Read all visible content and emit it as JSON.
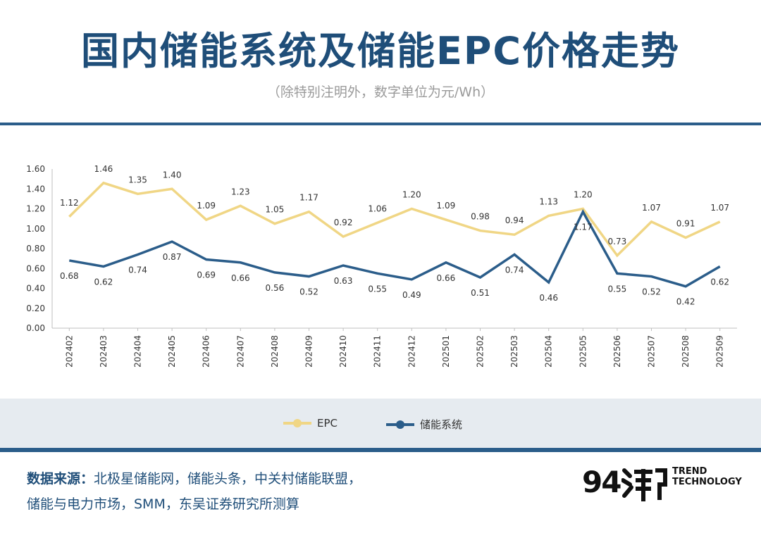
{
  "header": {
    "title": "国内储能系统及储能EPC价格走势",
    "subtitle": "（除特别注明外，数字单位为元/Wh）"
  },
  "chart_data": {
    "type": "line",
    "categories": [
      "202402",
      "202403",
      "202404",
      "202405",
      "202406",
      "202407",
      "202408",
      "202409",
      "202410",
      "202411",
      "202412",
      "202501",
      "202502",
      "202503",
      "202504",
      "202505",
      "202506",
      "202507",
      "202508",
      "202509"
    ],
    "series": [
      {
        "name": "EPC",
        "color": "#f0d685",
        "values": [
          1.12,
          1.46,
          1.35,
          1.4,
          1.09,
          1.23,
          1.05,
          1.17,
          0.92,
          1.06,
          1.2,
          1.09,
          0.98,
          0.94,
          1.13,
          1.2,
          0.73,
          1.07,
          0.91,
          1.07
        ],
        "labels": [
          "1.12",
          "1.46",
          "1.35",
          "1.40",
          "1.09",
          "1.23",
          "1.05",
          "1.17",
          "0.92",
          "1.06",
          "1.20",
          "1.09",
          "0.98",
          "0.94",
          "1.13",
          "1.20",
          "0.73",
          "1.07",
          "0.91",
          "1.07"
        ]
      },
      {
        "name": "储能系统",
        "color": "#2b5d8a",
        "values": [
          0.68,
          0.62,
          0.74,
          0.87,
          0.69,
          0.66,
          0.56,
          0.52,
          0.63,
          0.55,
          0.49,
          0.66,
          0.51,
          0.74,
          0.46,
          1.17,
          0.55,
          0.52,
          0.42,
          0.62
        ],
        "labels": [
          "0.68",
          "0.62",
          "0.74",
          "0.87",
          "0.69",
          "0.66",
          "0.56",
          "0.52",
          "0.63",
          "0.55",
          "0.49",
          "0.66",
          "0.51",
          "0.74",
          "0.46",
          "1.17",
          "0.55",
          "0.52",
          "0.42",
          "0.62"
        ]
      }
    ],
    "yticks": [
      "0.00",
      "0.20",
      "0.40",
      "0.60",
      "0.80",
      "1.00",
      "1.20",
      "1.40",
      "1.60"
    ],
    "ylim": [
      0,
      1.6
    ],
    "grid": false,
    "legend_position": "bottom"
  },
  "footer": {
    "source_label": "数据来源：",
    "source_line1": "北极星储能网，储能头条，中关村储能联盟，",
    "source_line2": "储能与电力市场，SMM，东吴证券研究所测算",
    "logo_number": "94",
    "logo_text_line1": "TREND",
    "logo_text_line2": "TECHNOLOGY"
  }
}
